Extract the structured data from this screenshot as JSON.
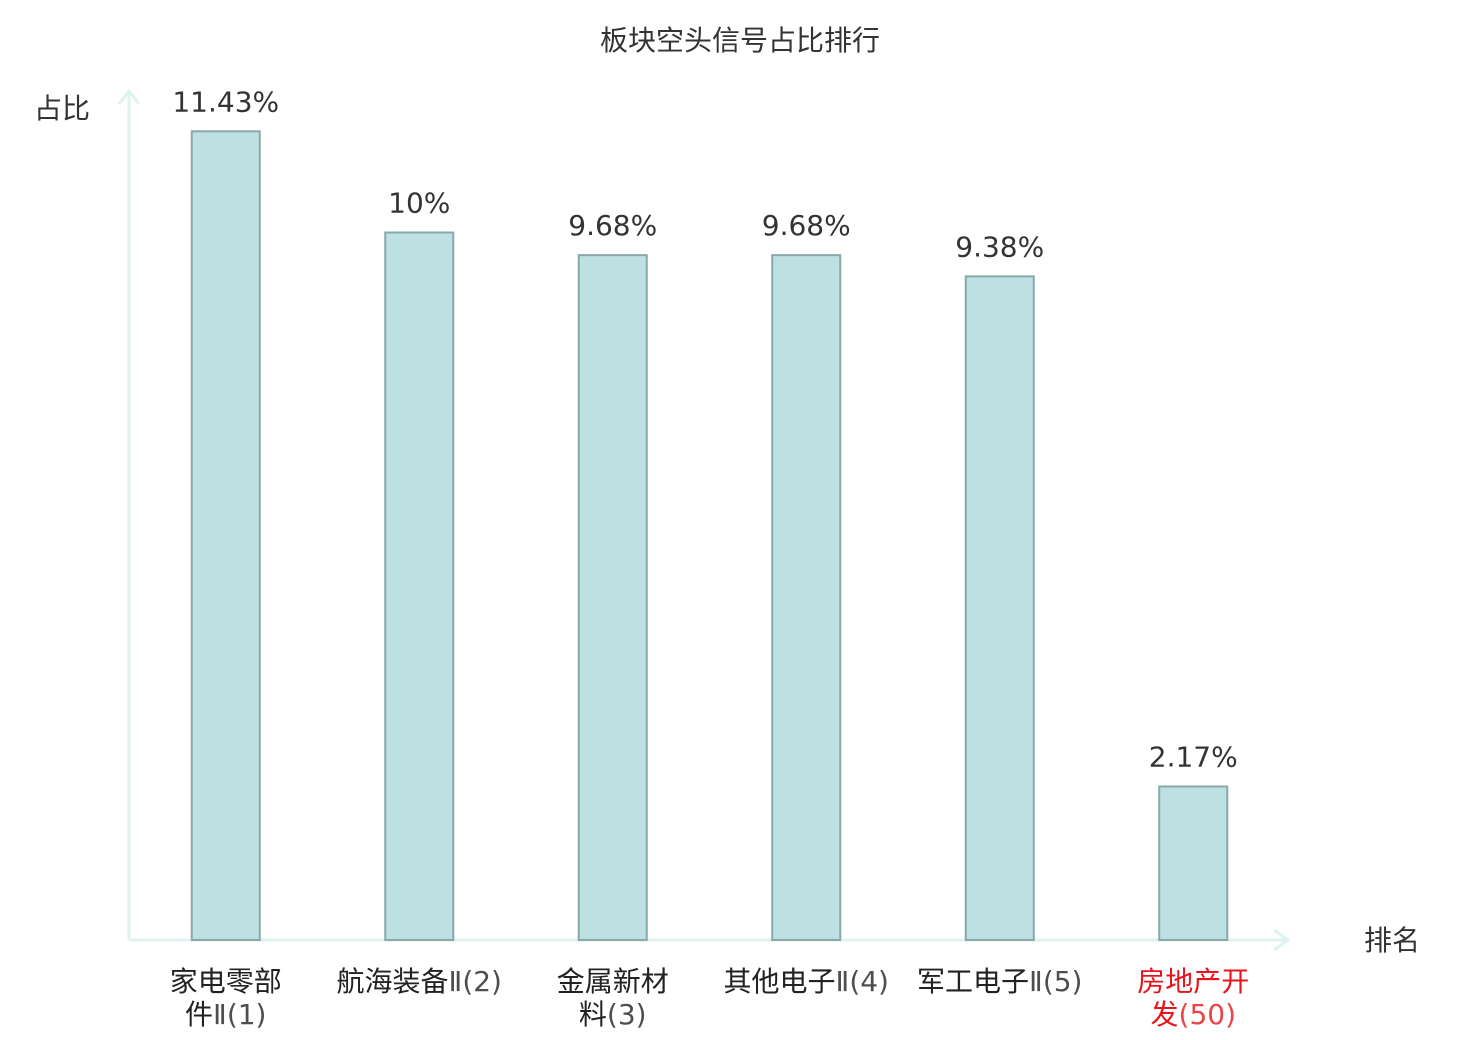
{
  "chart_data": {
    "type": "bar",
    "title": "板块空头信号占比排行",
    "y_label": "占比",
    "x_label": "排名",
    "categories": [
      "家电零部件Ⅱ(1)",
      "航海装备Ⅱ(2)",
      "金属新材料(3)",
      "其他电子Ⅱ(4)",
      "军工电子Ⅱ(5)",
      "房地产开发(50)"
    ],
    "category_colors": [
      "#222222",
      "#222222",
      "#222222",
      "#222222",
      "#222222",
      "#e8141c"
    ],
    "values": [
      11.43,
      10,
      9.68,
      9.68,
      9.38,
      2.17
    ],
    "value_labels": [
      "11.43%",
      "10%",
      "9.68%",
      "9.68%",
      "9.38%",
      "2.17%"
    ],
    "color": "#bde0e3",
    "edge_color": "#8aa8aa",
    "ylim": [
      0,
      12
    ]
  }
}
